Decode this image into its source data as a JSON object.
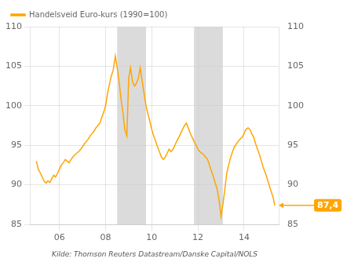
{
  "chart_data": {
    "type": "line",
    "source": "Kilde: Thomson Reuters Datastream/Danske Capital/NOLS",
    "series": [
      {
        "name": "Handelsveid Euro-kurs (1990=100)",
        "color": "#FFA500",
        "x": [
          2005.0,
          2005.08,
          2005.17,
          2005.25,
          2005.33,
          2005.42,
          2005.5,
          2005.58,
          2005.67,
          2005.75,
          2005.83,
          2005.92,
          2006.0,
          2006.08,
          2006.17,
          2006.25,
          2006.33,
          2006.42,
          2006.5,
          2006.58,
          2006.67,
          2006.75,
          2006.83,
          2006.92,
          2007.0,
          2007.08,
          2007.17,
          2007.25,
          2007.33,
          2007.42,
          2007.5,
          2007.58,
          2007.67,
          2007.75,
          2007.83,
          2007.92,
          2008.0,
          2008.08,
          2008.17,
          2008.25,
          2008.33,
          2008.42,
          2008.5,
          2008.58,
          2008.67,
          2008.75,
          2008.83,
          2008.92,
          2009.0,
          2009.08,
          2009.17,
          2009.25,
          2009.33,
          2009.42,
          2009.5,
          2009.58,
          2009.67,
          2009.75,
          2009.83,
          2009.92,
          2010.0,
          2010.08,
          2010.17,
          2010.25,
          2010.33,
          2010.42,
          2010.5,
          2010.58,
          2010.67,
          2010.75,
          2010.83,
          2010.92,
          2011.0,
          2011.08,
          2011.17,
          2011.25,
          2011.33,
          2011.42,
          2011.5,
          2011.58,
          2011.67,
          2011.75,
          2011.83,
          2011.92,
          2012.0,
          2012.08,
          2012.17,
          2012.25,
          2012.33,
          2012.42,
          2012.5,
          2012.58,
          2012.67,
          2012.75,
          2012.83,
          2012.92,
          2013.0,
          2013.08,
          2013.17,
          2013.25,
          2013.33,
          2013.42,
          2013.5,
          2013.58,
          2013.67,
          2013.75,
          2013.83,
          2013.92,
          2014.0,
          2014.08,
          2014.17,
          2014.25,
          2014.33,
          2014.42,
          2014.5,
          2014.58,
          2014.67,
          2014.75,
          2014.83,
          2014.92,
          2015.0,
          2015.08,
          2015.17,
          2015.25,
          2015.33
        ],
        "values": [
          93.0,
          92.0,
          91.5,
          91.0,
          90.5,
          90.2,
          90.5,
          90.3,
          90.8,
          91.2,
          91.0,
          91.5,
          92.0,
          92.5,
          92.8,
          93.2,
          93.0,
          92.8,
          93.2,
          93.5,
          93.8,
          94.0,
          94.2,
          94.5,
          94.8,
          95.2,
          95.5,
          95.8,
          96.2,
          96.5,
          96.8,
          97.2,
          97.5,
          97.8,
          98.5,
          99.2,
          100.0,
          101.5,
          102.8,
          103.8,
          104.5,
          106.3,
          104.8,
          103.2,
          100.8,
          99.2,
          97.0,
          96.2,
          103.5,
          104.8,
          103.0,
          102.5,
          102.8,
          103.5,
          104.8,
          103.2,
          101.5,
          100.0,
          99.0,
          98.0,
          97.0,
          96.2,
          95.5,
          94.8,
          94.2,
          93.5,
          93.2,
          93.5,
          94.0,
          94.5,
          94.2,
          94.5,
          95.0,
          95.5,
          96.0,
          96.5,
          97.0,
          97.5,
          97.8,
          97.2,
          96.5,
          96.0,
          95.5,
          95.0,
          94.5,
          94.2,
          94.0,
          93.8,
          93.5,
          93.2,
          92.5,
          91.8,
          91.0,
          90.2,
          89.5,
          88.0,
          86.0,
          87.5,
          89.5,
          91.5,
          92.5,
          93.5,
          94.2,
          94.8,
          95.2,
          95.5,
          95.8,
          96.0,
          96.5,
          97.0,
          97.2,
          97.0,
          96.5,
          96.0,
          95.2,
          94.5,
          93.8,
          93.0,
          92.2,
          91.5,
          90.8,
          90.0,
          89.2,
          88.5,
          87.4
        ]
      }
    ],
    "shaded_regions": [
      {
        "start": 2008.5,
        "end": 2009.75,
        "color": "#CCCCCC"
      },
      {
        "start": 2011.83,
        "end": 2013.08,
        "color": "#CCCCCC"
      }
    ],
    "annotations": [
      {
        "text": "87,4",
        "x": 2015.33,
        "y": 87.4
      }
    ],
    "xlim": [
      2004.75,
      2015.5
    ],
    "xticks": [
      {
        "value": 2006,
        "label": "06"
      },
      {
        "value": 2008,
        "label": "08"
      },
      {
        "value": 2010,
        "label": "10"
      },
      {
        "value": 2012,
        "label": "12"
      },
      {
        "value": 2014,
        "label": "14"
      }
    ],
    "ylim": [
      85,
      110
    ],
    "yticks": [
      85,
      90,
      95,
      100,
      105,
      110
    ],
    "y2lim": [
      85,
      110
    ],
    "y2ticks": [
      85,
      90,
      95,
      100,
      105,
      110
    ],
    "grid": true,
    "legend": "upper left"
  }
}
